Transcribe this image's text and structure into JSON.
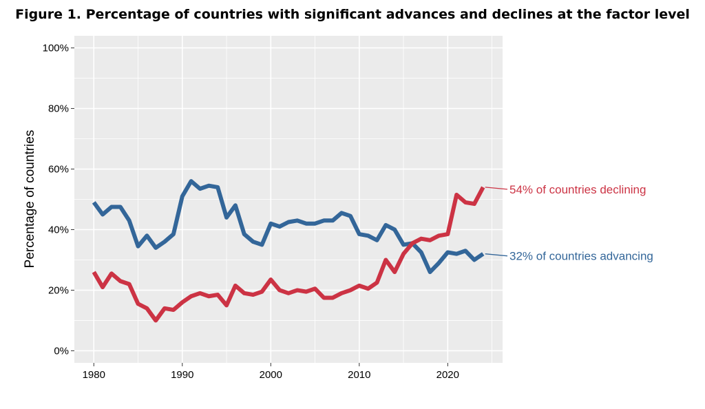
{
  "chart_data": {
    "type": "line",
    "title": "Figure 1. Percentage of countries with significant advances and declines at the factor level",
    "xlabel": "",
    "ylabel": "Percentage of countries",
    "xlim": [
      1977.8,
      2026.2
    ],
    "ylim": [
      -4,
      104
    ],
    "x_ticks": [
      1980,
      1990,
      2000,
      2010,
      2020
    ],
    "x_tick_labels": [
      "1980",
      "1990",
      "2000",
      "2010",
      "2020"
    ],
    "y_ticks": [
      0,
      20,
      40,
      60,
      80,
      100
    ],
    "y_tick_labels": [
      "0%",
      "20%",
      "40%",
      "60%",
      "80%",
      "100%"
    ],
    "grid": true,
    "legend": "none (direct labels)",
    "panel_background": "#ebebeb",
    "grid_color": "#ffffff",
    "x": [
      1980,
      1981,
      1982,
      1983,
      1984,
      1985,
      1986,
      1987,
      1988,
      1989,
      1990,
      1991,
      1992,
      1993,
      1994,
      1995,
      1996,
      1997,
      1998,
      1999,
      2000,
      2001,
      2002,
      2003,
      2004,
      2005,
      2006,
      2007,
      2008,
      2009,
      2010,
      2011,
      2012,
      2013,
      2014,
      2015,
      2016,
      2017,
      2018,
      2019,
      2020,
      2021,
      2022,
      2023,
      2024
    ],
    "series": [
      {
        "key": "advancing",
        "color": "#336699",
        "values": [
          49,
          45,
          47.5,
          47.5,
          43,
          34.5,
          38,
          34,
          36,
          38.5,
          51,
          56,
          53.5,
          54.5,
          54,
          44,
          48,
          38.5,
          36,
          35,
          42,
          41,
          42.5,
          43,
          42,
          42,
          43,
          43,
          45.5,
          44.5,
          38.5,
          38,
          36.5,
          41.5,
          40,
          35,
          35.5,
          32.5,
          26,
          29,
          32.5,
          32,
          33,
          30,
          32
        ],
        "end_label": "32% of countries advancing"
      },
      {
        "key": "declining",
        "color": "#cc3344",
        "values": [
          26,
          21,
          25.5,
          23,
          22,
          15.5,
          14,
          10,
          14,
          13.5,
          16,
          18,
          19,
          18,
          18.5,
          15,
          21.5,
          19,
          18.5,
          19.5,
          23.5,
          20,
          19,
          20,
          19.5,
          20.5,
          17.5,
          17.5,
          19,
          20,
          21.5,
          20.5,
          22.5,
          30,
          26,
          32,
          35.5,
          37,
          36.5,
          38,
          38.5,
          51.5,
          49,
          48.5,
          54
        ],
        "end_label": "54% of countries declining"
      }
    ]
  }
}
